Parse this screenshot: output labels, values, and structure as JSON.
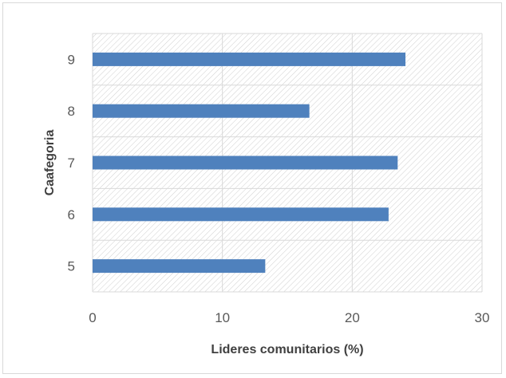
{
  "chart_data": {
    "type": "bar",
    "orientation": "horizontal",
    "categories": [
      "5",
      "6",
      "7",
      "8",
      "9"
    ],
    "values": [
      13.3,
      22.8,
      23.5,
      16.7,
      24.1
    ],
    "xlabel": "Lideres comunitarios (%)",
    "ylabel": "Caafegoria",
    "xlim": [
      0,
      30
    ],
    "xticks": [
      "0",
      "10",
      "20",
      "30"
    ],
    "grid": true,
    "legend": "none",
    "colors": {
      "bar": "#4f81bd",
      "grid": "#d9d9d9",
      "hatch": "#d0d0d0",
      "frame": "#d9d9d9"
    }
  }
}
